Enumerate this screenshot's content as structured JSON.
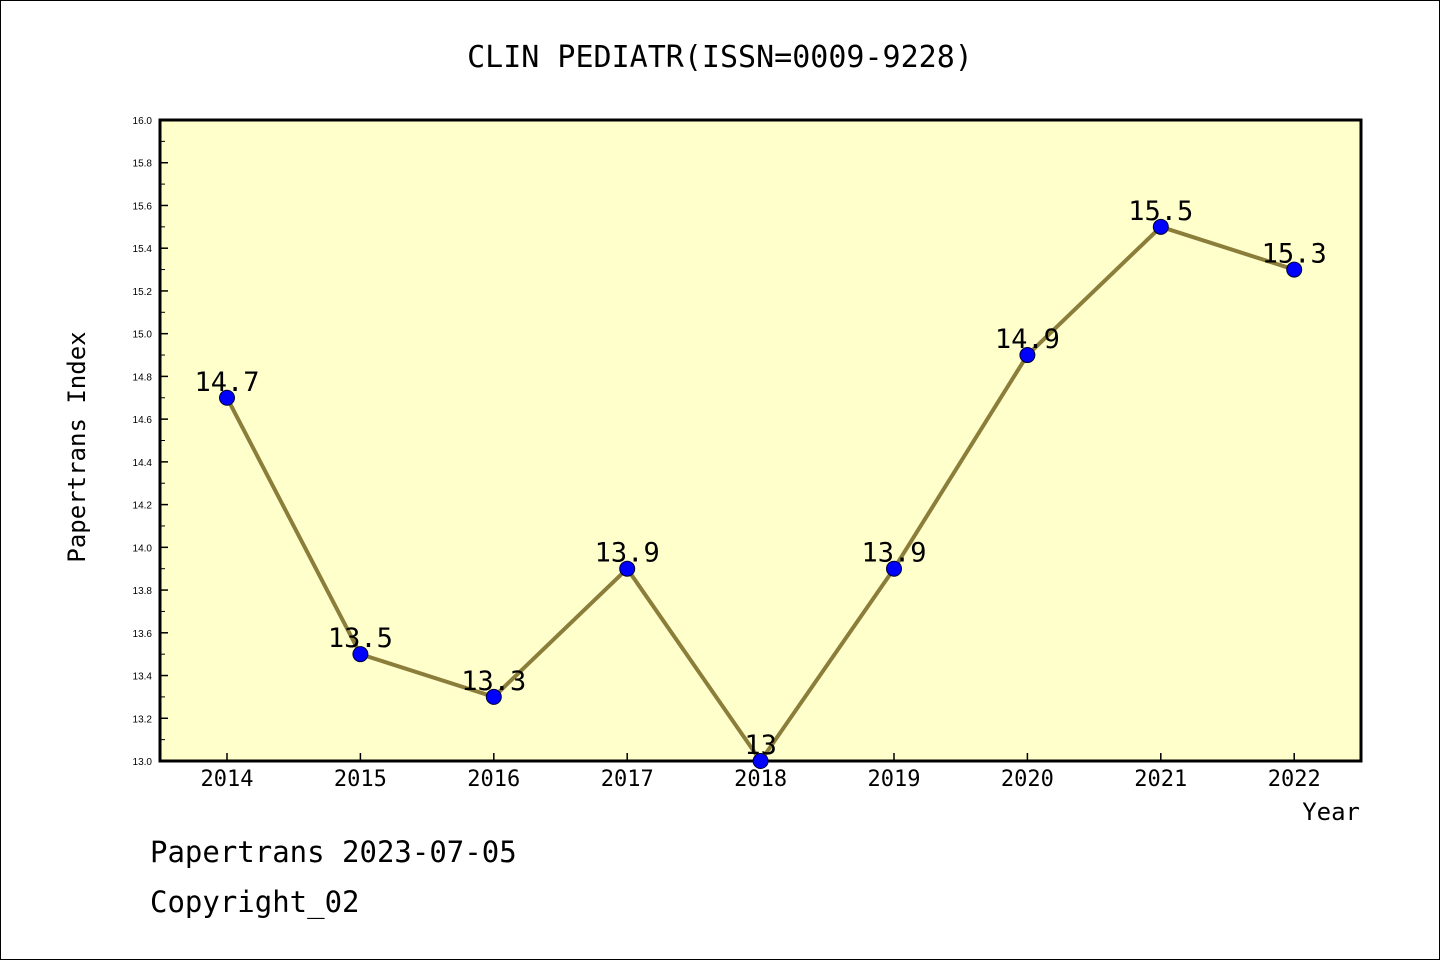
{
  "chart_data": {
    "type": "line",
    "title": "CLIN PEDIATR(ISSN=0009-9228)",
    "xlabel": "Year",
    "ylabel": "Papertrans Index",
    "x": [
      "2014",
      "2015",
      "2016",
      "2017",
      "2018",
      "2019",
      "2020",
      "2021",
      "2022"
    ],
    "series": [
      {
        "values": [
          14.7,
          13.5,
          13.3,
          13.9,
          13.0,
          13.9,
          14.9,
          15.5,
          15.3
        ],
        "labels": [
          "14.7",
          "13.5",
          "13.3",
          "13.9",
          "13",
          "13.9",
          "14.9",
          "15.5",
          "15.3"
        ]
      }
    ],
    "ylim": [
      13.0,
      16.0
    ],
    "yticks": [
      "13.0",
      "13.2",
      "13.4",
      "13.6",
      "13.8",
      "14.0",
      "14.2",
      "14.4",
      "14.6",
      "14.8",
      "15.0",
      "15.2",
      "15.4",
      "15.6",
      "15.8",
      "16.0"
    ],
    "grid": false,
    "colors": {
      "plot_background": "#ffffcc",
      "line": "#8b7d3a",
      "marker": "#0000ff",
      "axis": "#000000"
    }
  },
  "footer": {
    "date_line": "Papertrans 2023-07-05",
    "copyright_line": "Copyright_02"
  }
}
